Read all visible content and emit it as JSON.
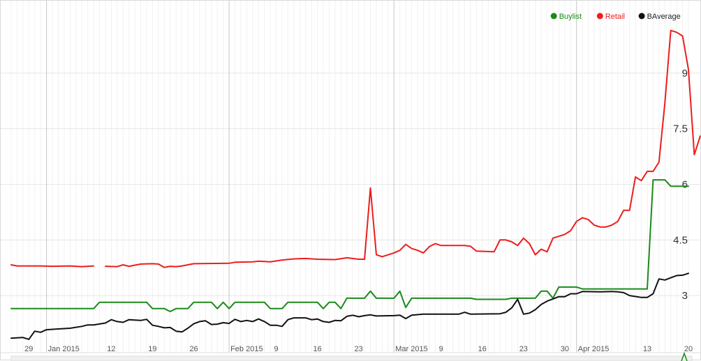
{
  "chart_data": {
    "type": "line",
    "title": "",
    "xlabel": "",
    "ylabel": "",
    "x_range": [
      "2014-12-26",
      "2015-04-20"
    ],
    "ylim": [
      1.8,
      10.2
    ],
    "y_ticks": [
      {
        "label": "3",
        "value": 3
      },
      {
        "label": "4.5",
        "value": 4.5
      },
      {
        "label": "6",
        "value": 6
      },
      {
        "label": "7.5",
        "value": 7.5
      },
      {
        "label": "9",
        "value": 9
      }
    ],
    "x_ticks": [
      {
        "label": "29",
        "date": "2014-12-29",
        "major": false
      },
      {
        "label": "Jan 2015",
        "date": "2015-01-01",
        "major": true
      },
      {
        "label": "12",
        "date": "2015-01-12",
        "major": false
      },
      {
        "label": "19",
        "date": "2015-01-19",
        "major": false
      },
      {
        "label": "26",
        "date": "2015-01-26",
        "major": false
      },
      {
        "label": "Feb 2015",
        "date": "2015-02-01",
        "major": true
      },
      {
        "label": "9",
        "date": "2015-02-09",
        "major": false
      },
      {
        "label": "16",
        "date": "2015-02-16",
        "major": false
      },
      {
        "label": "23",
        "date": "2015-02-23",
        "major": false
      },
      {
        "label": "Mar 2015",
        "date": "2015-03-01",
        "major": true
      },
      {
        "label": "9",
        "date": "2015-03-09",
        "major": false
      },
      {
        "label": "16",
        "date": "2015-03-16",
        "major": false
      },
      {
        "label": "23",
        "date": "2015-03-23",
        "major": false
      },
      {
        "label": "30",
        "date": "2015-03-30",
        "major": false
      },
      {
        "label": "Apr 2015",
        "date": "2015-04-01",
        "major": true
      },
      {
        "label": "13",
        "date": "2015-04-13",
        "major": false
      },
      {
        "label": "20",
        "date": "2015-04-20",
        "major": false
      }
    ],
    "grid": true,
    "legend_position": "top-right",
    "series": [
      {
        "name": "Buylist",
        "color": "#1a8a1a",
        "points": [
          [
            "2014-12-26",
            2.65
          ],
          [
            "2015-01-09",
            2.65
          ],
          [
            "2015-01-10",
            2.82
          ],
          [
            "2015-01-18",
            2.82
          ],
          [
            "2015-01-19",
            2.65
          ],
          [
            "2015-01-21",
            2.65
          ],
          [
            "2015-01-22",
            2.57
          ],
          [
            "2015-01-23",
            2.65
          ],
          [
            "2015-01-25",
            2.65
          ],
          [
            "2015-01-26",
            2.82
          ],
          [
            "2015-01-29",
            2.82
          ],
          [
            "2015-01-30",
            2.65
          ],
          [
            "2015-01-31",
            2.82
          ],
          [
            "2015-02-01",
            2.65
          ],
          [
            "2015-02-02",
            2.82
          ],
          [
            "2015-02-07",
            2.82
          ],
          [
            "2015-02-08",
            2.65
          ],
          [
            "2015-02-10",
            2.65
          ],
          [
            "2015-02-11",
            2.82
          ],
          [
            "2015-02-16",
            2.82
          ],
          [
            "2015-02-17",
            2.65
          ],
          [
            "2015-02-18",
            2.82
          ],
          [
            "2015-02-19",
            2.82
          ],
          [
            "2015-02-20",
            2.65
          ],
          [
            "2015-02-21",
            2.93
          ],
          [
            "2015-02-24",
            2.93
          ],
          [
            "2015-02-25",
            3.12
          ],
          [
            "2015-02-26",
            2.93
          ],
          [
            "2015-03-01",
            2.93
          ],
          [
            "2015-03-02",
            3.12
          ],
          [
            "2015-03-03",
            2.68
          ],
          [
            "2015-03-04",
            2.93
          ],
          [
            "2015-03-14",
            2.93
          ],
          [
            "2015-03-15",
            2.9
          ],
          [
            "2015-03-20",
            2.9
          ],
          [
            "2015-03-21",
            2.93
          ],
          [
            "2015-03-25",
            2.93
          ],
          [
            "2015-03-26",
            3.12
          ],
          [
            "2015-03-27",
            3.12
          ],
          [
            "2015-03-28",
            2.93
          ],
          [
            "2015-03-29",
            3.23
          ],
          [
            "2015-04-01",
            3.23
          ],
          [
            "2015-04-02",
            3.18
          ],
          [
            "2015-04-13",
            3.18
          ],
          [
            "2015-04-14",
            6.12
          ],
          [
            "2015-04-16",
            6.12
          ],
          [
            "2015-04-17",
            5.95
          ],
          [
            "2015-04-20",
            5.95
          ]
        ]
      },
      {
        "name": "Retail",
        "color": "#ee1c1c",
        "points": [
          [
            "2014-12-26",
            3.83
          ],
          [
            "2014-12-27",
            3.8
          ],
          [
            "2014-12-31",
            3.8
          ],
          [
            "2015-01-02",
            3.79
          ],
          [
            "2015-01-05",
            3.8
          ],
          [
            "2015-01-07",
            3.78
          ],
          [
            "2015-01-09",
            3.8
          ],
          null,
          [
            "2015-01-11",
            3.79
          ],
          [
            "2015-01-13",
            3.78
          ],
          [
            "2015-01-14",
            3.83
          ],
          [
            "2015-01-15",
            3.79
          ],
          [
            "2015-01-17",
            3.85
          ],
          [
            "2015-01-19",
            3.86
          ],
          [
            "2015-01-20",
            3.85
          ],
          [
            "2015-01-21",
            3.76
          ],
          [
            "2015-01-22",
            3.79
          ],
          [
            "2015-01-23",
            3.78
          ],
          [
            "2015-01-24",
            3.8
          ],
          [
            "2015-01-26",
            3.86
          ],
          [
            "2015-02-01",
            3.87
          ],
          [
            "2015-02-02",
            3.9
          ],
          [
            "2015-02-05",
            3.91
          ],
          [
            "2015-02-06",
            3.93
          ],
          [
            "2015-02-08",
            3.91
          ],
          [
            "2015-02-10",
            3.96
          ],
          [
            "2015-02-12",
            3.99
          ],
          [
            "2015-02-14",
            4.0
          ],
          [
            "2015-02-16",
            3.98
          ],
          [
            "2015-02-19",
            3.97
          ],
          [
            "2015-02-21",
            4.02
          ],
          [
            "2015-02-23",
            3.98
          ],
          [
            "2015-02-24",
            3.98
          ],
          [
            "2015-02-25",
            5.9
          ],
          [
            "2015-02-26",
            4.1
          ],
          [
            "2015-02-27",
            4.05
          ],
          [
            "2015-03-01",
            4.15
          ],
          [
            "2015-03-02",
            4.22
          ],
          [
            "2015-03-03",
            4.38
          ],
          [
            "2015-03-04",
            4.27
          ],
          [
            "2015-03-05",
            4.22
          ],
          [
            "2015-03-06",
            4.15
          ],
          [
            "2015-03-07",
            4.32
          ],
          [
            "2015-03-08",
            4.4
          ],
          [
            "2015-03-09",
            4.35
          ],
          [
            "2015-03-13",
            4.35
          ],
          [
            "2015-03-14",
            4.33
          ],
          [
            "2015-03-15",
            4.2
          ],
          [
            "2015-03-18",
            4.18
          ],
          [
            "2015-03-19",
            4.5
          ],
          [
            "2015-03-20",
            4.5
          ],
          [
            "2015-03-21",
            4.45
          ],
          [
            "2015-03-22",
            4.35
          ],
          [
            "2015-03-23",
            4.55
          ],
          [
            "2015-03-24",
            4.4
          ],
          [
            "2015-03-25",
            4.1
          ],
          [
            "2015-03-26",
            4.25
          ],
          [
            "2015-03-27",
            4.18
          ],
          [
            "2015-03-28",
            4.55
          ],
          [
            "2015-03-30",
            4.65
          ],
          [
            "2015-03-31",
            4.75
          ],
          [
            "2015-04-01",
            5.0
          ],
          [
            "2015-04-02",
            5.1
          ],
          [
            "2015-04-03",
            5.05
          ],
          [
            "2015-04-04",
            4.9
          ],
          [
            "2015-04-05",
            4.85
          ],
          [
            "2015-04-06",
            4.85
          ],
          [
            "2015-04-07",
            4.9
          ],
          [
            "2015-04-08",
            5.0
          ],
          [
            "2015-04-09",
            5.3
          ],
          [
            "2015-04-10",
            5.3
          ],
          [
            "2015-04-11",
            6.2
          ],
          [
            "2015-04-12",
            6.1
          ],
          [
            "2015-04-13",
            6.35
          ],
          [
            "2015-04-14",
            6.35
          ],
          [
            "2015-04-15",
            6.6
          ],
          [
            "2015-04-16",
            8.2
          ],
          [
            "2015-04-17",
            10.15
          ],
          [
            "2015-04-18",
            10.1
          ],
          [
            "2015-04-19",
            10.0
          ],
          [
            "2015-04-20",
            9.1
          ],
          [
            "2015-04-21",
            6.8
          ],
          [
            "2015-04-22",
            7.3
          ]
        ]
      },
      {
        "name": "BAverage",
        "color": "#111111",
        "points": [
          [
            "2014-12-26",
            1.85
          ],
          [
            "2014-12-28",
            1.87
          ],
          [
            "2014-12-29",
            1.82
          ],
          [
            "2014-12-30",
            2.04
          ],
          [
            "2014-12-31",
            2.01
          ],
          [
            "2015-01-01",
            2.08
          ],
          [
            "2015-01-03",
            2.1
          ],
          [
            "2015-01-05",
            2.12
          ],
          [
            "2015-01-07",
            2.17
          ],
          [
            "2015-01-08",
            2.21
          ],
          [
            "2015-01-09",
            2.21
          ],
          [
            "2015-01-11",
            2.26
          ],
          [
            "2015-01-12",
            2.35
          ],
          [
            "2015-01-13",
            2.3
          ],
          [
            "2015-01-14",
            2.28
          ],
          [
            "2015-01-15",
            2.35
          ],
          [
            "2015-01-17",
            2.33
          ],
          [
            "2015-01-18",
            2.36
          ],
          [
            "2015-01-19",
            2.2
          ],
          [
            "2015-01-20",
            2.17
          ],
          [
            "2015-01-21",
            2.13
          ],
          [
            "2015-01-22",
            2.14
          ],
          [
            "2015-01-23",
            2.04
          ],
          [
            "2015-01-24",
            2.02
          ],
          [
            "2015-01-25",
            2.12
          ],
          [
            "2015-01-26",
            2.24
          ],
          [
            "2015-01-27",
            2.3
          ],
          [
            "2015-01-28",
            2.32
          ],
          [
            "2015-01-29",
            2.22
          ],
          [
            "2015-01-30",
            2.23
          ],
          [
            "2015-01-31",
            2.27
          ],
          [
            "2015-02-01",
            2.25
          ],
          [
            "2015-02-02",
            2.36
          ],
          [
            "2015-02-03",
            2.3
          ],
          [
            "2015-02-04",
            2.33
          ],
          [
            "2015-02-05",
            2.3
          ],
          [
            "2015-02-06",
            2.37
          ],
          [
            "2015-02-07",
            2.3
          ],
          [
            "2015-02-08",
            2.2
          ],
          [
            "2015-02-09",
            2.2
          ],
          [
            "2015-02-10",
            2.17
          ],
          [
            "2015-02-11",
            2.35
          ],
          [
            "2015-02-12",
            2.4
          ],
          [
            "2015-02-14",
            2.4
          ],
          [
            "2015-02-15",
            2.35
          ],
          [
            "2015-02-16",
            2.37
          ],
          [
            "2015-02-17",
            2.3
          ],
          [
            "2015-02-18",
            2.28
          ],
          [
            "2015-02-19",
            2.33
          ],
          [
            "2015-02-20",
            2.32
          ],
          [
            "2015-02-21",
            2.44
          ],
          [
            "2015-02-22",
            2.47
          ],
          [
            "2015-02-23",
            2.43
          ],
          [
            "2015-02-24",
            2.46
          ],
          [
            "2015-02-25",
            2.48
          ],
          [
            "2015-02-26",
            2.45
          ],
          [
            "2015-03-01",
            2.46
          ],
          [
            "2015-03-02",
            2.47
          ],
          [
            "2015-03-03",
            2.38
          ],
          [
            "2015-03-04",
            2.47
          ],
          [
            "2015-03-06",
            2.5
          ],
          [
            "2015-03-12",
            2.5
          ],
          [
            "2015-03-13",
            2.55
          ],
          [
            "2015-03-14",
            2.5
          ],
          [
            "2015-03-19",
            2.51
          ],
          [
            "2015-03-20",
            2.55
          ],
          [
            "2015-03-21",
            2.67
          ],
          [
            "2015-03-22",
            2.9
          ],
          [
            "2015-03-23",
            2.5
          ],
          [
            "2015-03-24",
            2.53
          ],
          [
            "2015-03-25",
            2.62
          ],
          [
            "2015-03-26",
            2.76
          ],
          [
            "2015-03-27",
            2.85
          ],
          [
            "2015-03-28",
            2.91
          ],
          [
            "2015-03-29",
            2.97
          ],
          [
            "2015-03-30",
            2.97
          ],
          [
            "2015-03-31",
            3.05
          ],
          [
            "2015-04-01",
            3.05
          ],
          [
            "2015-04-02",
            3.11
          ],
          [
            "2015-04-05",
            3.1
          ],
          [
            "2015-04-07",
            3.11
          ],
          [
            "2015-04-08",
            3.1
          ],
          [
            "2015-04-09",
            3.08
          ],
          [
            "2015-04-10",
            3.0
          ],
          [
            "2015-04-12",
            2.95
          ],
          [
            "2015-04-13",
            2.95
          ],
          [
            "2015-04-14",
            3.05
          ],
          [
            "2015-04-15",
            3.45
          ],
          [
            "2015-04-16",
            3.42
          ],
          [
            "2015-04-17",
            3.48
          ],
          [
            "2015-04-18",
            3.54
          ],
          [
            "2015-04-19",
            3.55
          ],
          [
            "2015-04-20",
            3.6
          ]
        ]
      }
    ]
  }
}
